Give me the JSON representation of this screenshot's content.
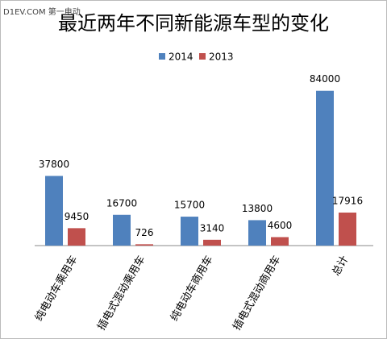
{
  "chart_data": {
    "type": "bar",
    "title": "最近两年不同新能源车型的变化",
    "watermark": "D1EV.COM 第一电动",
    "categories": [
      "纯电动车乘用车",
      "插电式混动乘用车",
      "纯电动车商用车",
      "插电式混动商用车",
      "总计"
    ],
    "series": [
      {
        "name": "2014",
        "color": "#4f81bd",
        "values": [
          37800,
          16700,
          15700,
          13800,
          84000
        ]
      },
      {
        "name": "2013",
        "color": "#c0504d",
        "values": [
          9450,
          726,
          3140,
          4600,
          17916
        ]
      }
    ],
    "ylim": [
      0,
      90000
    ],
    "legend": "top"
  }
}
